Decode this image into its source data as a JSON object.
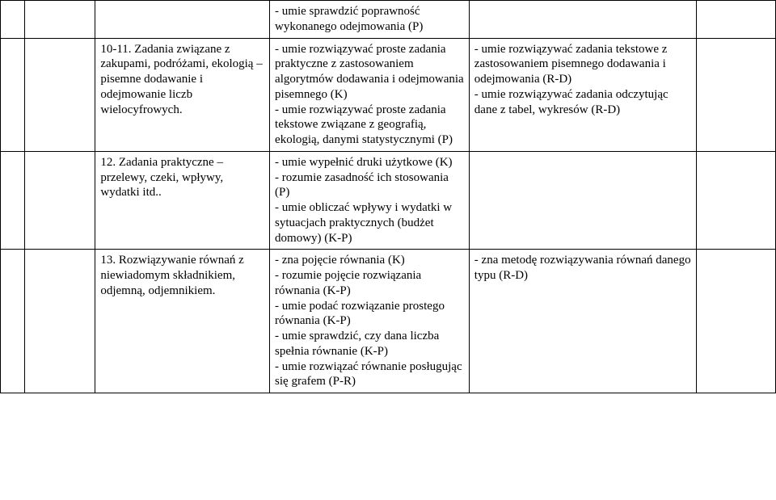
{
  "rows": {
    "r0": {
      "c3": "- umie sprawdzić poprawność wykonanego odejmowania (P)"
    },
    "r1": {
      "c2": "10-11. Zadania związane z zakupami, podróżami, ekologią – pisemne dodawanie i odejmowanie liczb wielocyfrowych.",
      "c3": "- umie rozwiązywać proste zadania praktyczne z zastosowaniem algorytmów dodawania i odejmowania pisemnego (K)\n- umie rozwiązywać proste zadania tekstowe związane z geografią, ekologią, danymi statystycznymi (P)",
      "c4": "- umie rozwiązywać zadania tekstowe z zastosowaniem pisemnego dodawania i odejmowania  (R-D)\n- umie rozwiązywać zadania odczytując dane z tabel, wykresów (R-D)"
    },
    "r2": {
      "c2": "12. Zadania praktyczne – przelewy, czeki, wpływy, wydatki itd..",
      "c3": "- umie wypełnić druki użytkowe (K)\n- rozumie zasadność ich stosowania (P)\n- umie obliczać wpływy i wydatki w sytuacjach praktycznych (budżet domowy) (K-P)"
    },
    "r3": {
      "c2": "13. Rozwiązywanie równań z niewiadomym składnikiem, odjemną, odjemnikiem.",
      "c3": "- zna pojęcie równania (K)\n- rozumie pojęcie rozwiązania równania (K-P)\n- umie podać rozwiązanie prostego równania (K-P)\n- umie sprawdzić, czy dana liczba spełnia równanie (K-P)\n- umie rozwiązać równanie posługując się grafem (P-R)",
      "c4": "- zna metodę rozwiązywania równań danego typu (R-D)"
    }
  }
}
